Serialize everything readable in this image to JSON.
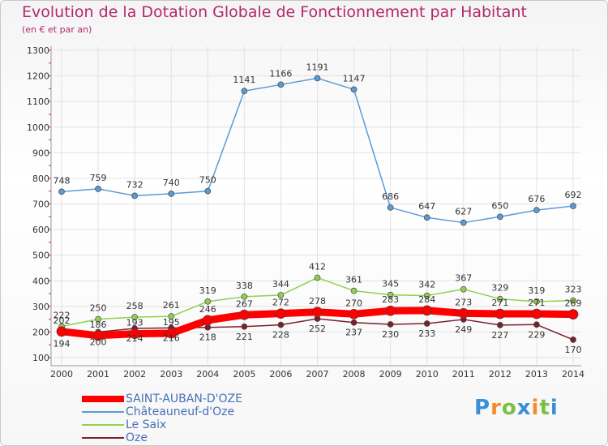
{
  "title": "Evolution de la Dotation Globale de Fonctionnement par Habitant",
  "subtitle": "(en € et par an)",
  "logo": "Proxiti",
  "chart_data": {
    "type": "line",
    "categories": [
      "2000",
      "2001",
      "2002",
      "2003",
      "2004",
      "2005",
      "2006",
      "2007",
      "2008",
      "2009",
      "2010",
      "2011",
      "2012",
      "2013",
      "2014"
    ],
    "ylim": [
      100,
      1300
    ],
    "yticks": [
      100,
      200,
      300,
      400,
      500,
      600,
      700,
      800,
      900,
      1000,
      1100,
      1200,
      1300
    ],
    "grid": true,
    "legend_position": "bottom-left",
    "series": [
      {
        "name": "SAINT-AUBAN-D'OZE",
        "color": "#ff0000",
        "values": [
          202,
          186,
          193,
          195,
          246,
          267,
          272,
          278,
          270,
          283,
          284,
          273,
          271,
          271,
          269
        ]
      },
      {
        "name": "Châteauneuf-d'Oze",
        "color": "#5b9bd5",
        "values": [
          748,
          759,
          732,
          740,
          750,
          1141,
          1166,
          1191,
          1147,
          686,
          647,
          627,
          650,
          676,
          692
        ]
      },
      {
        "name": "Le Saix",
        "color": "#8fd14f",
        "values": [
          222,
          250,
          258,
          261,
          319,
          338,
          344,
          412,
          361,
          345,
          342,
          367,
          329,
          319,
          323
        ]
      },
      {
        "name": "Oze",
        "color": "#7b1f2c",
        "values": [
          194,
          200,
          214,
          216,
          218,
          221,
          228,
          252,
          237,
          230,
          233,
          249,
          227,
          229,
          170
        ]
      }
    ]
  }
}
